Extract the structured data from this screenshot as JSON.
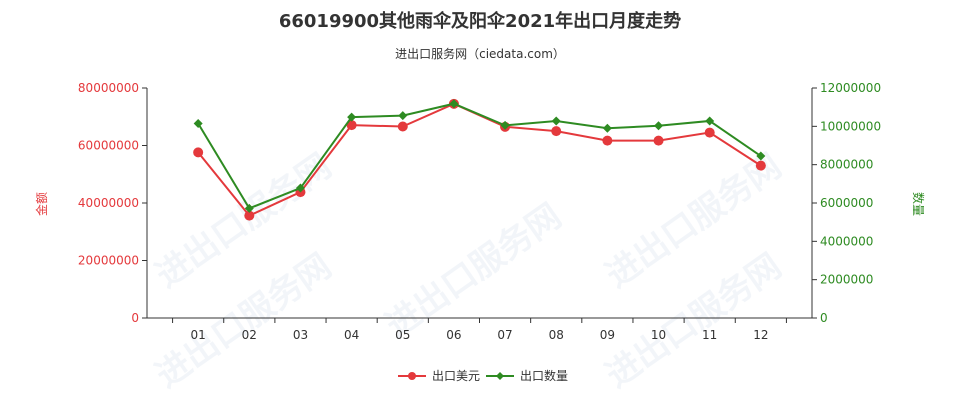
{
  "chart_data": {
    "type": "line",
    "title": "66019900其他雨伞及阳伞2021年出口月度走势",
    "subtitle": "进出口服务网（ciedata.com）",
    "categories": [
      "01",
      "02",
      "03",
      "04",
      "05",
      "06",
      "07",
      "08",
      "09",
      "10",
      "11",
      "12"
    ],
    "y_left": {
      "label": "金额",
      "ylim": [
        0,
        80000000
      ],
      "ticks": [
        "0",
        "20000000",
        "40000000",
        "60000000",
        "80000000"
      ],
      "color": "#e4393c"
    },
    "y_right": {
      "label": "数量",
      "ylim": [
        0,
        12000000
      ],
      "ticks": [
        "0",
        "2000000",
        "4000000",
        "6000000",
        "8000000",
        "10000000",
        "12000000"
      ],
      "color": "#2e8b22"
    },
    "series": [
      {
        "name": "出口美元",
        "axis": "left",
        "color": "#e4393c",
        "values": [
          57600000,
          35600000,
          43800000,
          67100000,
          66600000,
          74500000,
          66500000,
          65000000,
          61700000,
          61700000,
          64500000,
          53000000
        ]
      },
      {
        "name": "出口数量",
        "axis": "right",
        "color": "#2e8b22",
        "values": [
          10150000,
          5720000,
          6780000,
          10480000,
          10560000,
          11180000,
          10050000,
          10280000,
          9900000,
          10030000,
          10280000,
          8450000
        ]
      }
    ],
    "legend": "bottom-center",
    "grid": false,
    "watermark": "进出口服务网"
  }
}
